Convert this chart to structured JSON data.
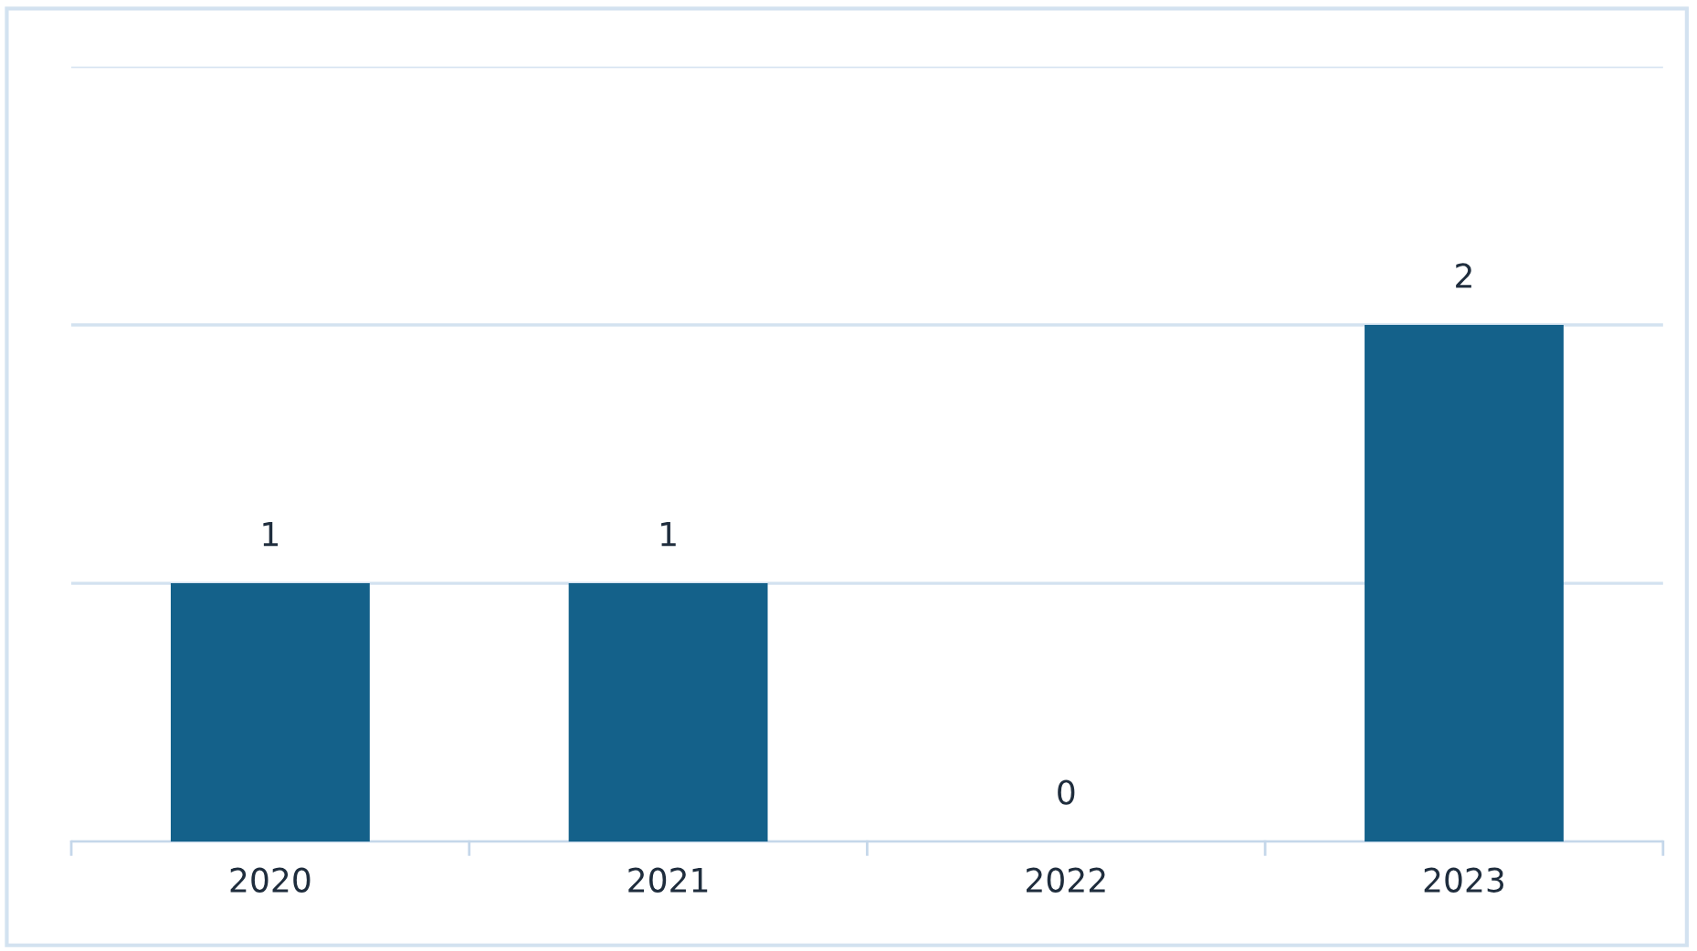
{
  "chart_data": {
    "type": "bar",
    "categories": [
      "2020",
      "2021",
      "2022",
      "2023"
    ],
    "values": [
      1,
      1,
      0,
      2
    ],
    "color": "#14618a",
    "ylim": [
      0,
      3
    ],
    "yticks": [
      {
        "value": 0,
        "label": null
      },
      {
        "value": 1,
        "label": null
      },
      {
        "value": 2,
        "label": null
      },
      {
        "value": 3,
        "label": null
      }
    ],
    "tick_labels": "x",
    "grid": "y",
    "data_labels": true
  }
}
